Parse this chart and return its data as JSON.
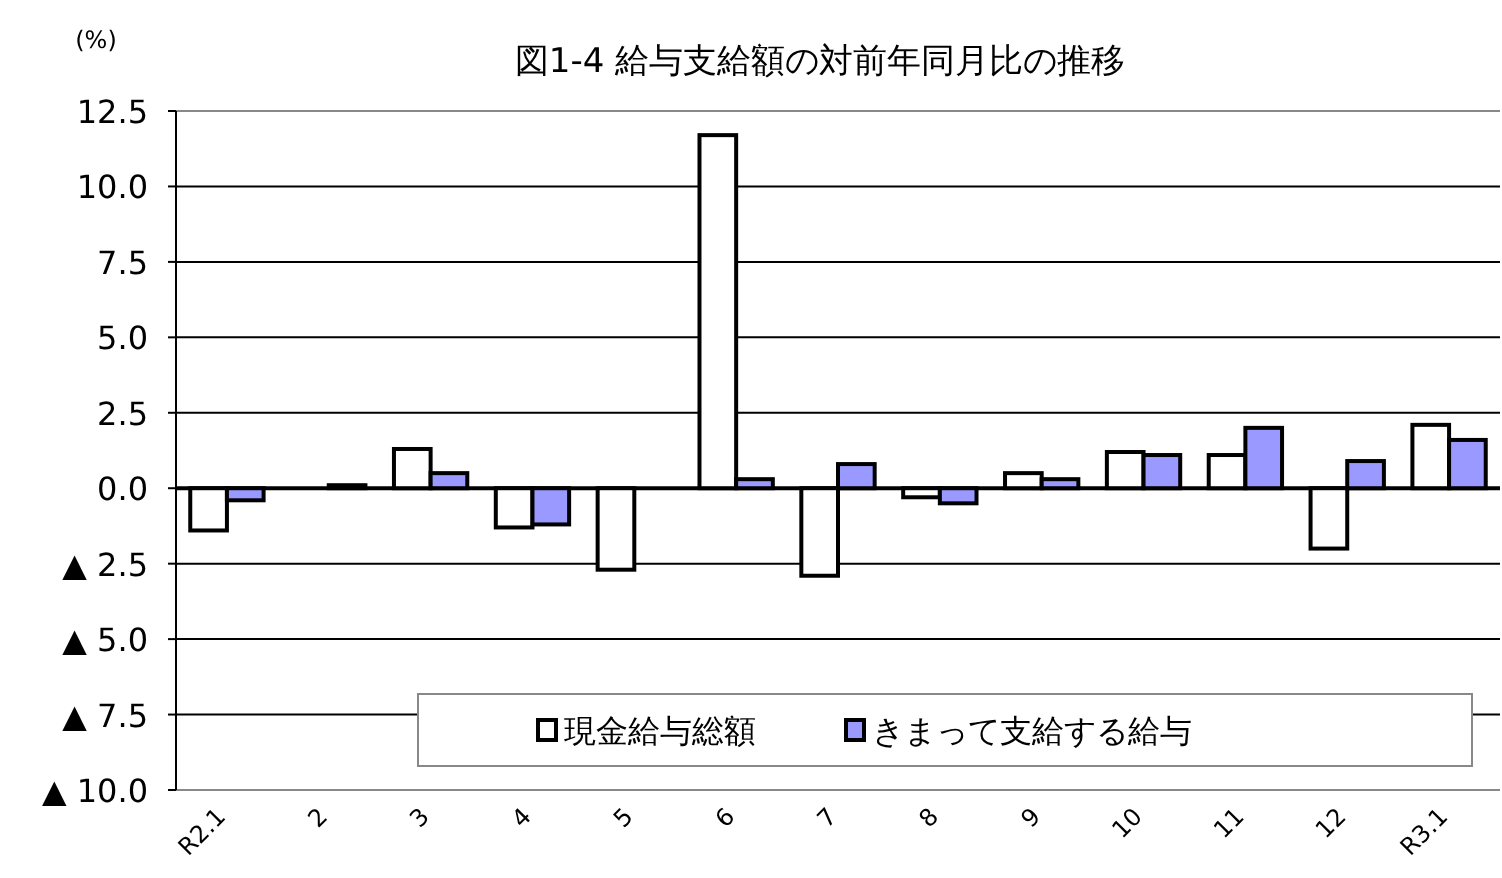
{
  "chart_data": {
    "type": "bar",
    "title": "図1-4  給与支給額の対前年同月比の推移",
    "ylabel": "(%)",
    "categories": [
      "R2.1",
      "2",
      "3",
      "4",
      "5",
      "6",
      "7",
      "8",
      "9",
      "10",
      "11",
      "12",
      "R3.1"
    ],
    "series": [
      {
        "name": "現金給与総額",
        "color": "#ffffff",
        "values": [
          -1.4,
          0.0,
          1.3,
          -1.3,
          -2.7,
          11.7,
          -2.9,
          -0.3,
          0.5,
          1.2,
          1.1,
          -2.0,
          2.1
        ]
      },
      {
        "name": "きまって支給する給与",
        "color": "#9999ff",
        "values": [
          -0.4,
          0.1,
          0.5,
          -1.2,
          0.0,
          0.3,
          0.8,
          -0.5,
          0.3,
          1.1,
          2.0,
          0.9,
          1.6
        ]
      }
    ],
    "ylim": [
      -10,
      12.5
    ],
    "yticks": [
      {
        "value": -10,
        "label": "▲ 10.0"
      },
      {
        "value": -7.5,
        "label": "▲ 7.5"
      },
      {
        "value": -5,
        "label": "▲ 5.0"
      },
      {
        "value": -2.5,
        "label": "▲ 2.5"
      },
      {
        "value": 0,
        "label": "0.0"
      },
      {
        "value": 2.5,
        "label": "2.5"
      },
      {
        "value": 5,
        "label": "5.0"
      },
      {
        "value": 7.5,
        "label": "7.5"
      },
      {
        "value": 10,
        "label": "10.0"
      },
      {
        "value": 12.5,
        "label": "12.5"
      }
    ],
    "grid": "y",
    "legend": "bottom"
  }
}
